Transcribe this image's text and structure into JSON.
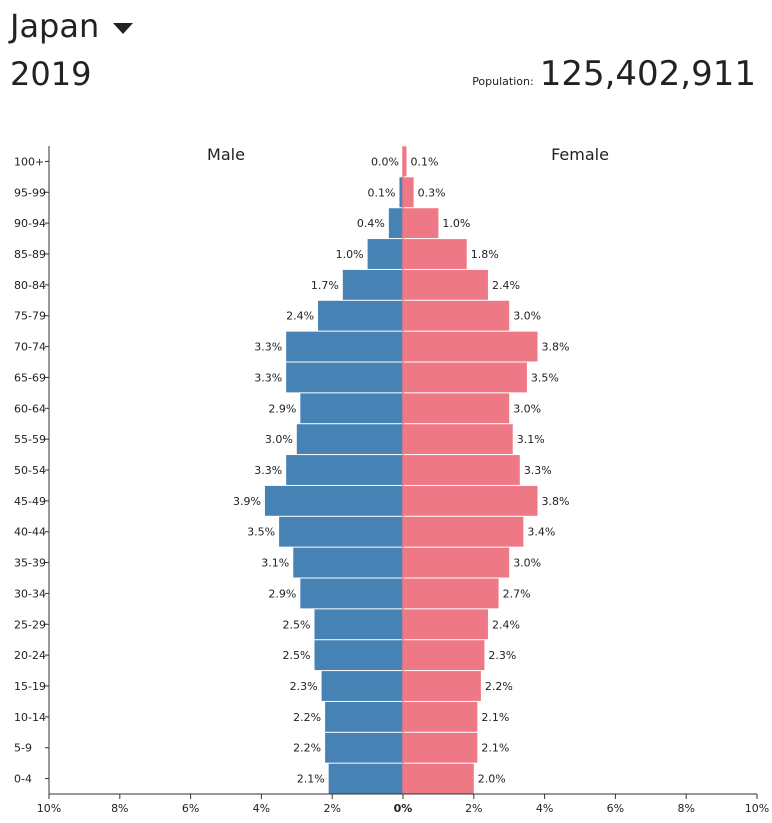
{
  "header": {
    "country": "Japan",
    "year": "2019",
    "population_label": "Population:",
    "population_value": "125,402,911"
  },
  "colors": {
    "male": "#4682b4",
    "female": "#ef7887",
    "axis": "#333333",
    "center_line": "#ef7887"
  },
  "icons": {
    "country_dropdown": "caret-down-icon"
  },
  "chart_data": {
    "type": "bar",
    "orientation": "horizontal-pyramid",
    "categories": [
      "0-4",
      "5-9",
      "10-14",
      "15-19",
      "20-24",
      "25-29",
      "30-34",
      "35-39",
      "40-44",
      "45-49",
      "50-54",
      "55-59",
      "60-64",
      "65-69",
      "70-74",
      "75-79",
      "80-84",
      "85-89",
      "90-94",
      "95-99",
      "100+"
    ],
    "series": [
      {
        "name": "Male",
        "values": [
          2.1,
          2.2,
          2.2,
          2.3,
          2.5,
          2.5,
          2.9,
          3.1,
          3.5,
          3.9,
          3.3,
          3.0,
          2.9,
          3.3,
          3.3,
          2.4,
          1.7,
          1.0,
          0.4,
          0.1,
          0.0
        ],
        "labels": [
          "2.1%",
          "2.2%",
          "2.2%",
          "2.3%",
          "2.5%",
          "2.5%",
          "2.9%",
          "3.1%",
          "3.5%",
          "3.9%",
          "3.3%",
          "3.0%",
          "2.9%",
          "3.3%",
          "3.3%",
          "2.4%",
          "1.7%",
          "1.0%",
          "0.4%",
          "0.1%",
          "0.0%"
        ]
      },
      {
        "name": "Female",
        "values": [
          2.0,
          2.1,
          2.1,
          2.2,
          2.3,
          2.4,
          2.7,
          3.0,
          3.4,
          3.8,
          3.3,
          3.1,
          3.0,
          3.5,
          3.8,
          3.0,
          2.4,
          1.8,
          1.0,
          0.3,
          0.1
        ],
        "labels": [
          "2.0%",
          "2.1%",
          "2.1%",
          "2.2%",
          "2.3%",
          "2.4%",
          "2.7%",
          "3.0%",
          "3.4%",
          "3.8%",
          "3.3%",
          "3.1%",
          "3.0%",
          "3.5%",
          "3.8%",
          "3.0%",
          "2.4%",
          "1.8%",
          "1.0%",
          "0.3%",
          "0.1%"
        ]
      }
    ],
    "x_ticks": [
      "10%",
      "8%",
      "6%",
      "4%",
      "2%",
      "0%",
      "2%",
      "4%",
      "6%",
      "8%",
      "10%"
    ],
    "xlim": [
      -10,
      10
    ],
    "title": "",
    "xlabel": "",
    "ylabel": "",
    "grid": false,
    "legend": "series labels above bars (Male left, Female right)"
  }
}
